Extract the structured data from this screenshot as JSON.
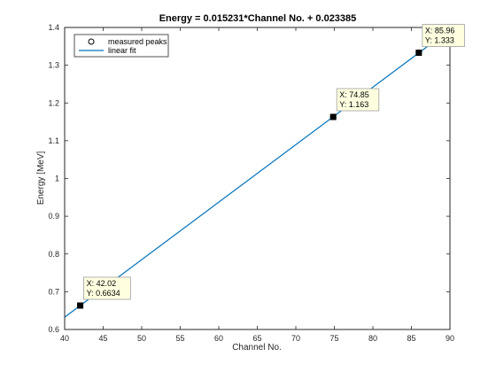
{
  "chart_data": {
    "type": "scatter",
    "title": "Energy = 0.015231*Channel No. + 0.023385",
    "xlabel": "Channel No.",
    "ylabel": "Energy [MeV]",
    "xlim": [
      40,
      90
    ],
    "ylim": [
      0.6,
      1.4
    ],
    "xticks": [
      "40",
      "45",
      "50",
      "55",
      "60",
      "65",
      "70",
      "75",
      "80",
      "85",
      "90"
    ],
    "yticks": [
      "0.6",
      "0.7",
      "0.8",
      "0.9",
      "1",
      "1.1",
      "1.2",
      "1.3",
      "1.4"
    ],
    "grid": false,
    "legend_position": "top-left",
    "series": [
      {
        "name": "measured peaks",
        "kind": "scatter",
        "marker": "circle",
        "x": [
          42.02,
          74.85,
          85.96
        ],
        "y": [
          0.6634,
          1.163,
          1.333
        ]
      },
      {
        "name": "linear fit",
        "kind": "line",
        "color": "#0072bd",
        "x": [
          40,
          90
        ],
        "y": [
          0.632625,
          1.394175
        ]
      }
    ],
    "datatips": [
      {
        "x": 42.02,
        "y": 0.6634,
        "x_text": "X: 42.02",
        "y_text": "Y: 0.6634"
      },
      {
        "x": 74.85,
        "y": 1.163,
        "x_text": "X: 74.85",
        "y_text": "Y: 1.163"
      },
      {
        "x": 85.96,
        "y": 1.333,
        "x_text": "X: 85.96",
        "y_text": "Y: 1.333"
      }
    ],
    "colors": {
      "fit_line": "#0072bd",
      "datatip_fill": "#ffffe0",
      "marker_fill": "#000000"
    }
  }
}
